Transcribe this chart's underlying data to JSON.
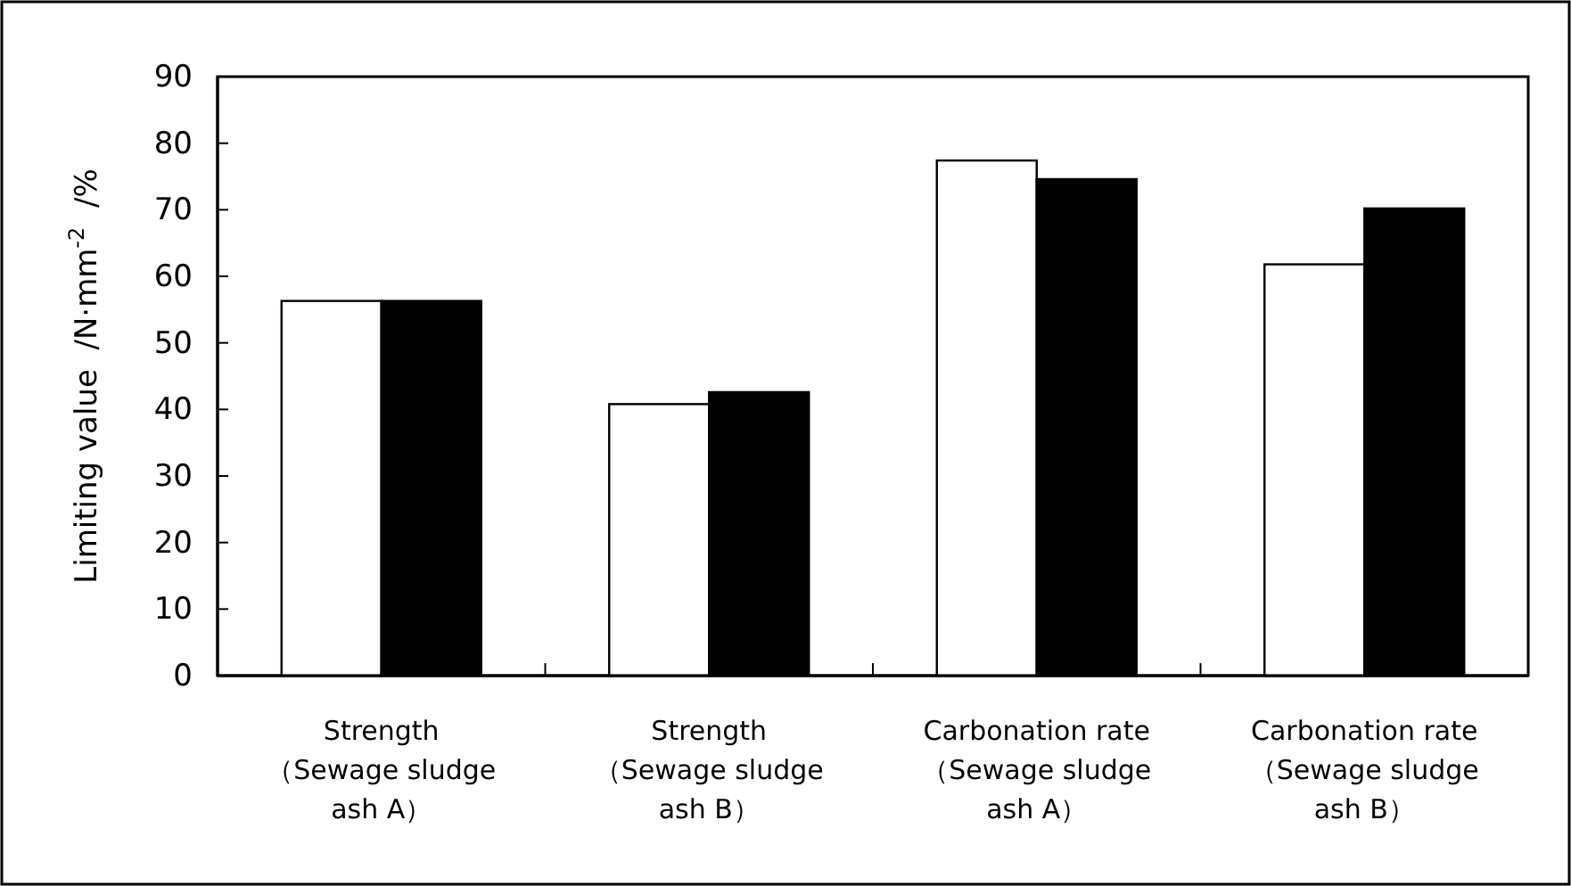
{
  "chart_data": {
    "type": "bar",
    "ylabel": "Limiting value  /N·mm$^{-2}$  /%",
    "categories": [
      "Strength\n（Sewage sludge\nash A）",
      "Strength\n（Sewage sludge\nash B）",
      "Carbonation rate\n（Sewage sludge\nash A）",
      "Carbonation rate\n（Sewage sludge\nash B）"
    ],
    "series": [
      {
        "color": "#ffffff",
        "values": [
          56.3,
          40.8,
          77.4,
          61.8
        ]
      },
      {
        "color": "#000000",
        "values": [
          56.3,
          42.6,
          74.6,
          70.2
        ]
      }
    ],
    "ylim": [
      0,
      90
    ],
    "yticks": [
      0,
      10,
      20,
      30,
      40,
      50,
      60,
      70,
      80,
      90
    ],
    "grid": false
  }
}
